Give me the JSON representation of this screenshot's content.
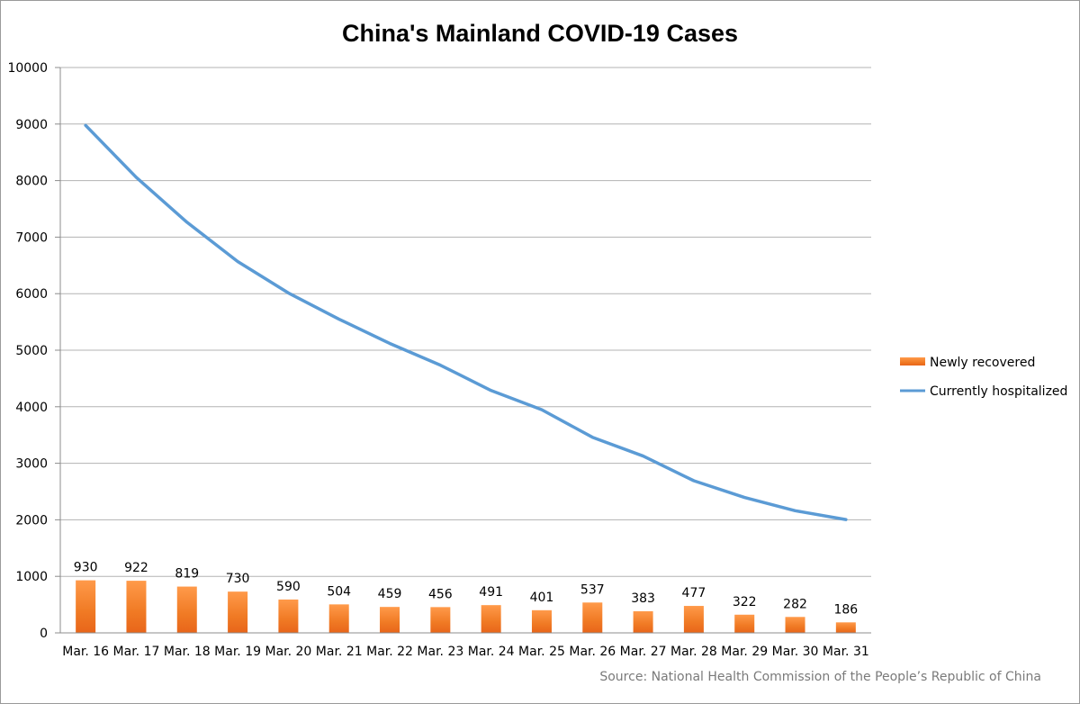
{
  "chart_data": {
    "type": "bar",
    "title": "China's Mainland COVID-19 Cases",
    "source": "Source: National Health Commission of the People’s Republic of China",
    "categories": [
      "Mar. 16",
      "Mar. 17",
      "Mar. 18",
      "Mar. 19",
      "Mar. 20",
      "Mar. 21",
      "Mar. 22",
      "Mar. 23",
      "Mar. 24",
      "Mar. 25",
      "Mar. 26",
      "Mar. 27",
      "Mar. 28",
      "Mar. 29",
      "Mar. 30",
      "Mar. 31"
    ],
    "series": [
      {
        "name": "Newly recovered",
        "type": "bar",
        "color": "#f07a24",
        "values": [
          930,
          922,
          819,
          730,
          590,
          504,
          459,
          456,
          491,
          401,
          537,
          383,
          477,
          322,
          282,
          186
        ],
        "data_labels": [
          "930",
          "922",
          "819",
          "730",
          "590",
          "504",
          "459",
          "456",
          "491",
          "401",
          "537",
          "383",
          "477",
          "322",
          "282",
          "186"
        ]
      },
      {
        "name": "Currently hospitalized",
        "type": "line",
        "color": "#5b9bd5",
        "values": [
          8976,
          8056,
          7263,
          6569,
          6013,
          5549,
          5120,
          4735,
          4287,
          3947,
          3460,
          3128,
          2691,
          2396,
          2161,
          2004
        ]
      }
    ],
    "ylim": [
      0,
      10000
    ],
    "yticks": [
      "0",
      "1000",
      "2000",
      "3000",
      "4000",
      "5000",
      "6000",
      "7000",
      "8000",
      "9000",
      "10000"
    ],
    "grid": true,
    "legend_position": "right"
  }
}
